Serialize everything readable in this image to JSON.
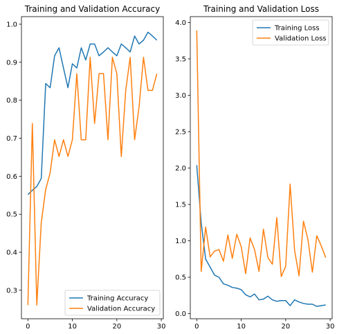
{
  "chart_data": [
    {
      "type": "line",
      "title": "Training and Validation Accuracy",
      "xlabel": "",
      "ylabel": "",
      "xlim": [
        -1.45,
        30.45
      ],
      "ylim": [
        0.225,
        1.02
      ],
      "x": [
        0,
        1,
        2,
        3,
        4,
        5,
        6,
        7,
        8,
        9,
        10,
        11,
        12,
        13,
        14,
        15,
        16,
        17,
        18,
        19,
        20,
        21,
        22,
        23,
        24,
        25,
        26,
        27,
        28,
        29
      ],
      "xticks": [
        0,
        10,
        20,
        30
      ],
      "yticks": [
        0.3,
        0.4,
        0.5,
        0.6,
        0.7,
        0.8,
        0.9,
        1.0
      ],
      "ytick_labels": [
        "0.3",
        "0.4",
        "0.5",
        "0.6",
        "0.7",
        "0.8",
        "0.9",
        "1.0"
      ],
      "legend": "lower-right",
      "grid": false,
      "series": [
        {
          "name": "Training Accuracy",
          "color": "#1f77b4",
          "values": [
            0.552,
            0.563,
            0.573,
            0.594,
            0.844,
            0.833,
            0.917,
            0.938,
            0.885,
            0.833,
            0.896,
            0.885,
            0.938,
            0.906,
            0.948,
            0.948,
            0.917,
            0.927,
            0.938,
            0.927,
            0.917,
            0.948,
            0.938,
            0.927,
            0.969,
            0.948,
            0.958,
            0.979,
            0.969,
            0.958
          ]
        },
        {
          "name": "Validation Accuracy",
          "color": "#ff7f0e",
          "values": [
            0.261,
            0.739,
            0.261,
            0.478,
            0.565,
            0.609,
            0.696,
            0.652,
            0.696,
            0.652,
            0.696,
            0.87,
            0.696,
            0.696,
            0.913,
            0.739,
            0.87,
            0.87,
            0.696,
            0.913,
            0.87,
            0.652,
            0.826,
            0.913,
            0.696,
            0.783,
            0.913,
            0.826,
            0.826,
            0.87
          ]
        }
      ]
    },
    {
      "type": "line",
      "title": "Training and Validation Loss",
      "xlabel": "",
      "ylabel": "",
      "xlim": [
        -1.45,
        30.45
      ],
      "ylim": [
        -0.07,
        4.08
      ],
      "x": [
        0,
        1,
        2,
        3,
        4,
        5,
        6,
        7,
        8,
        9,
        10,
        11,
        12,
        13,
        14,
        15,
        16,
        17,
        18,
        19,
        20,
        21,
        22,
        23,
        24,
        25,
        26,
        27,
        28,
        29
      ],
      "xticks": [
        0,
        10,
        20,
        30
      ],
      "yticks": [
        0.0,
        0.5,
        1.0,
        1.5,
        2.0,
        2.5,
        3.0,
        3.5,
        4.0
      ],
      "ytick_labels": [
        "0.0",
        "0.5",
        "1.0",
        "1.5",
        "2.0",
        "2.5",
        "3.0",
        "3.5",
        "4.0"
      ],
      "legend": "upper-right",
      "grid": false,
      "series": [
        {
          "name": "Training Loss",
          "color": "#1f77b4",
          "values": [
            2.04,
            1.25,
            0.75,
            0.64,
            0.53,
            0.5,
            0.41,
            0.39,
            0.36,
            0.35,
            0.33,
            0.26,
            0.23,
            0.27,
            0.19,
            0.2,
            0.24,
            0.19,
            0.17,
            0.18,
            0.18,
            0.11,
            0.19,
            0.16,
            0.14,
            0.13,
            0.13,
            0.1,
            0.11,
            0.12
          ]
        },
        {
          "name": "Validation Loss",
          "color": "#ff7f0e",
          "values": [
            3.89,
            0.58,
            1.19,
            0.78,
            0.86,
            0.88,
            0.72,
            1.08,
            0.76,
            1.09,
            0.92,
            0.55,
            1.04,
            0.88,
            0.58,
            1.16,
            0.77,
            0.68,
            1.32,
            0.51,
            0.65,
            1.78,
            0.87,
            0.52,
            1.27,
            1.02,
            0.57,
            1.07,
            0.93,
            0.77
          ]
        }
      ]
    }
  ]
}
